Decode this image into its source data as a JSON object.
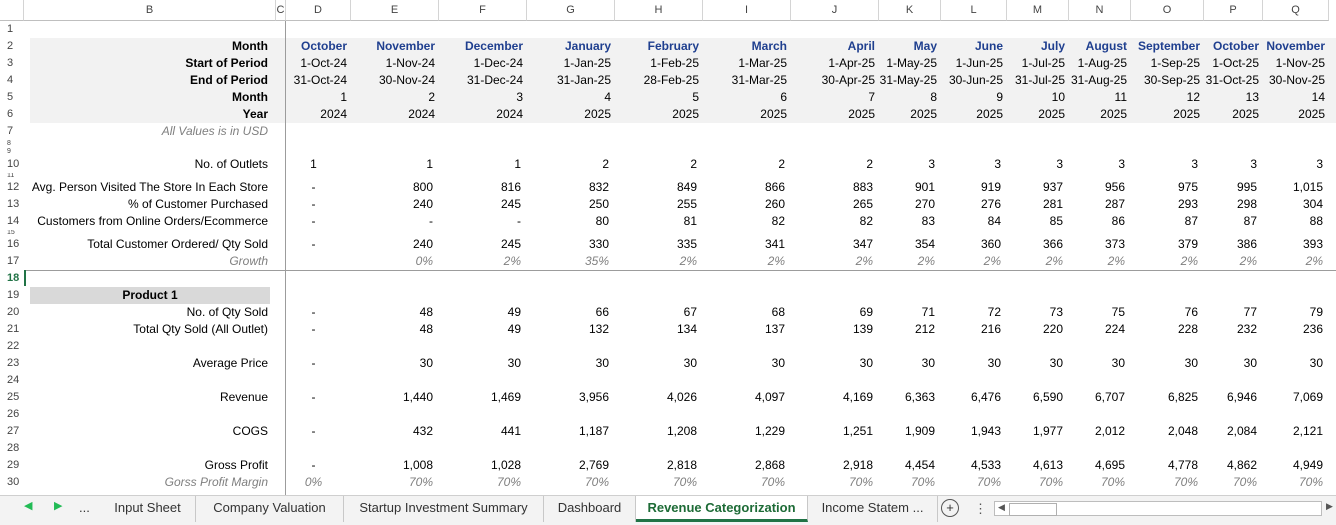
{
  "columns": [
    "B",
    "C",
    "D",
    "E",
    "F",
    "G",
    "H",
    "I",
    "J",
    "K",
    "L",
    "M",
    "N",
    "O",
    "P",
    "Q"
  ],
  "rows": [
    "1",
    "2",
    "3",
    "4",
    "5",
    "6",
    "7",
    "8",
    "9",
    "10",
    "11",
    "12",
    "13",
    "14",
    "15",
    "16",
    "17",
    "18",
    "19",
    "20",
    "21",
    "22",
    "23",
    "24",
    "25",
    "26",
    "27",
    "28",
    "29",
    "30"
  ],
  "labels": {
    "month": "Month",
    "start": "Start of Period",
    "end": "End of Period",
    "month_num": "Month",
    "year": "Year",
    "usd": "All Values is in USD",
    "outlets": "No. of Outlets",
    "avg_person": "Avg. Person Visited The Store In Each Store",
    "pct_purchased": "% of Customer Purchased",
    "online": "Customers from Online Orders/Ecommerce",
    "total_customer": "Total Customer Ordered/ Qty Sold",
    "growth": "Growth",
    "product": "Product 1",
    "qty_sold": "No. of Qty Sold",
    "total_qty": "Total Qty Sold (All Outlet)",
    "avg_price": "Average Price",
    "revenue": "Revenue",
    "cogs": "COGS",
    "gross_profit": "Gross Profit",
    "gross_margin": "Gorss Profit Margin"
  },
  "header": {
    "month": [
      "October",
      "November",
      "December",
      "January",
      "February",
      "March",
      "April",
      "May",
      "June",
      "July",
      "August",
      "September",
      "October",
      "November"
    ],
    "start": [
      "1-Oct-24",
      "1-Nov-24",
      "1-Dec-24",
      "1-Jan-25",
      "1-Feb-25",
      "1-Mar-25",
      "1-Apr-25",
      "1-May-25",
      "1-Jun-25",
      "1-Jul-25",
      "1-Aug-25",
      "1-Sep-25",
      "1-Oct-25",
      "1-Nov-25"
    ],
    "end": [
      "31-Oct-24",
      "30-Nov-24",
      "31-Dec-24",
      "31-Jan-25",
      "28-Feb-25",
      "31-Mar-25",
      "30-Apr-25",
      "31-May-25",
      "30-Jun-25",
      "31-Jul-25",
      "31-Aug-25",
      "30-Sep-25",
      "31-Oct-25",
      "30-Nov-25"
    ],
    "month_num": [
      "1",
      "2",
      "3",
      "4",
      "5",
      "6",
      "7",
      "8",
      "9",
      "10",
      "11",
      "12",
      "13",
      "14"
    ],
    "year": [
      "2024",
      "2024",
      "2024",
      "2025",
      "2025",
      "2025",
      "2025",
      "2025",
      "2025",
      "2025",
      "2025",
      "2025",
      "2025",
      "2025"
    ]
  },
  "values": {
    "outlets": [
      "1",
      "1",
      "1",
      "2",
      "2",
      "2",
      "2",
      "3",
      "3",
      "3",
      "3",
      "3",
      "3",
      "3"
    ],
    "avg_person": [
      "-",
      "800",
      "816",
      "832",
      "849",
      "866",
      "883",
      "901",
      "919",
      "937",
      "956",
      "975",
      "995",
      "1,015"
    ],
    "pct_purchased": [
      "-",
      "240",
      "245",
      "250",
      "255",
      "260",
      "265",
      "270",
      "276",
      "281",
      "287",
      "293",
      "298",
      "304"
    ],
    "online": [
      "-",
      "-",
      "-",
      "80",
      "81",
      "82",
      "82",
      "83",
      "84",
      "85",
      "86",
      "87",
      "87",
      "88"
    ],
    "total_customer": [
      "-",
      "240",
      "245",
      "330",
      "335",
      "341",
      "347",
      "354",
      "360",
      "366",
      "373",
      "379",
      "386",
      "393"
    ],
    "growth": [
      "",
      "0%",
      "2%",
      "35%",
      "2%",
      "2%",
      "2%",
      "2%",
      "2%",
      "2%",
      "2%",
      "2%",
      "2%",
      "2%"
    ],
    "qty_sold": [
      "-",
      "48",
      "49",
      "66",
      "67",
      "68",
      "69",
      "71",
      "72",
      "73",
      "75",
      "76",
      "77",
      "79"
    ],
    "total_qty": [
      "-",
      "48",
      "49",
      "132",
      "134",
      "137",
      "139",
      "212",
      "216",
      "220",
      "224",
      "228",
      "232",
      "236"
    ],
    "avg_price": [
      "-",
      "30",
      "30",
      "30",
      "30",
      "30",
      "30",
      "30",
      "30",
      "30",
      "30",
      "30",
      "30",
      "30"
    ],
    "revenue": [
      "-",
      "1,440",
      "1,469",
      "3,956",
      "4,026",
      "4,097",
      "4,169",
      "6,363",
      "6,476",
      "6,590",
      "6,707",
      "6,825",
      "6,946",
      "7,069"
    ],
    "cogs": [
      "-",
      "432",
      "441",
      "1,187",
      "1,208",
      "1,229",
      "1,251",
      "1,909",
      "1,943",
      "1,977",
      "2,012",
      "2,048",
      "2,084",
      "2,121"
    ],
    "gross_profit": [
      "-",
      "1,008",
      "1,028",
      "2,769",
      "2,818",
      "2,868",
      "2,918",
      "4,454",
      "4,533",
      "4,613",
      "4,695",
      "4,778",
      "4,862",
      "4,949"
    ],
    "gross_margin": [
      "0%",
      "70%",
      "70%",
      "70%",
      "70%",
      "70%",
      "70%",
      "70%",
      "70%",
      "70%",
      "70%",
      "70%",
      "70%",
      "70%"
    ]
  },
  "tabs": [
    "Input Sheet",
    "Company Valuation",
    "Startup Investment Summary",
    "Dashboard",
    "Revenue Categorization",
    "Income Statem ..."
  ],
  "active_tab": "Revenue Categorization",
  "nav": {
    "ellipsis": "...",
    "more": "⋮"
  },
  "colors": {
    "header_blue": "#1f3f8f",
    "active_tab_green": "#217346",
    "band_gray": "#f2f2f2",
    "product_gray": "#d9d9d9"
  }
}
